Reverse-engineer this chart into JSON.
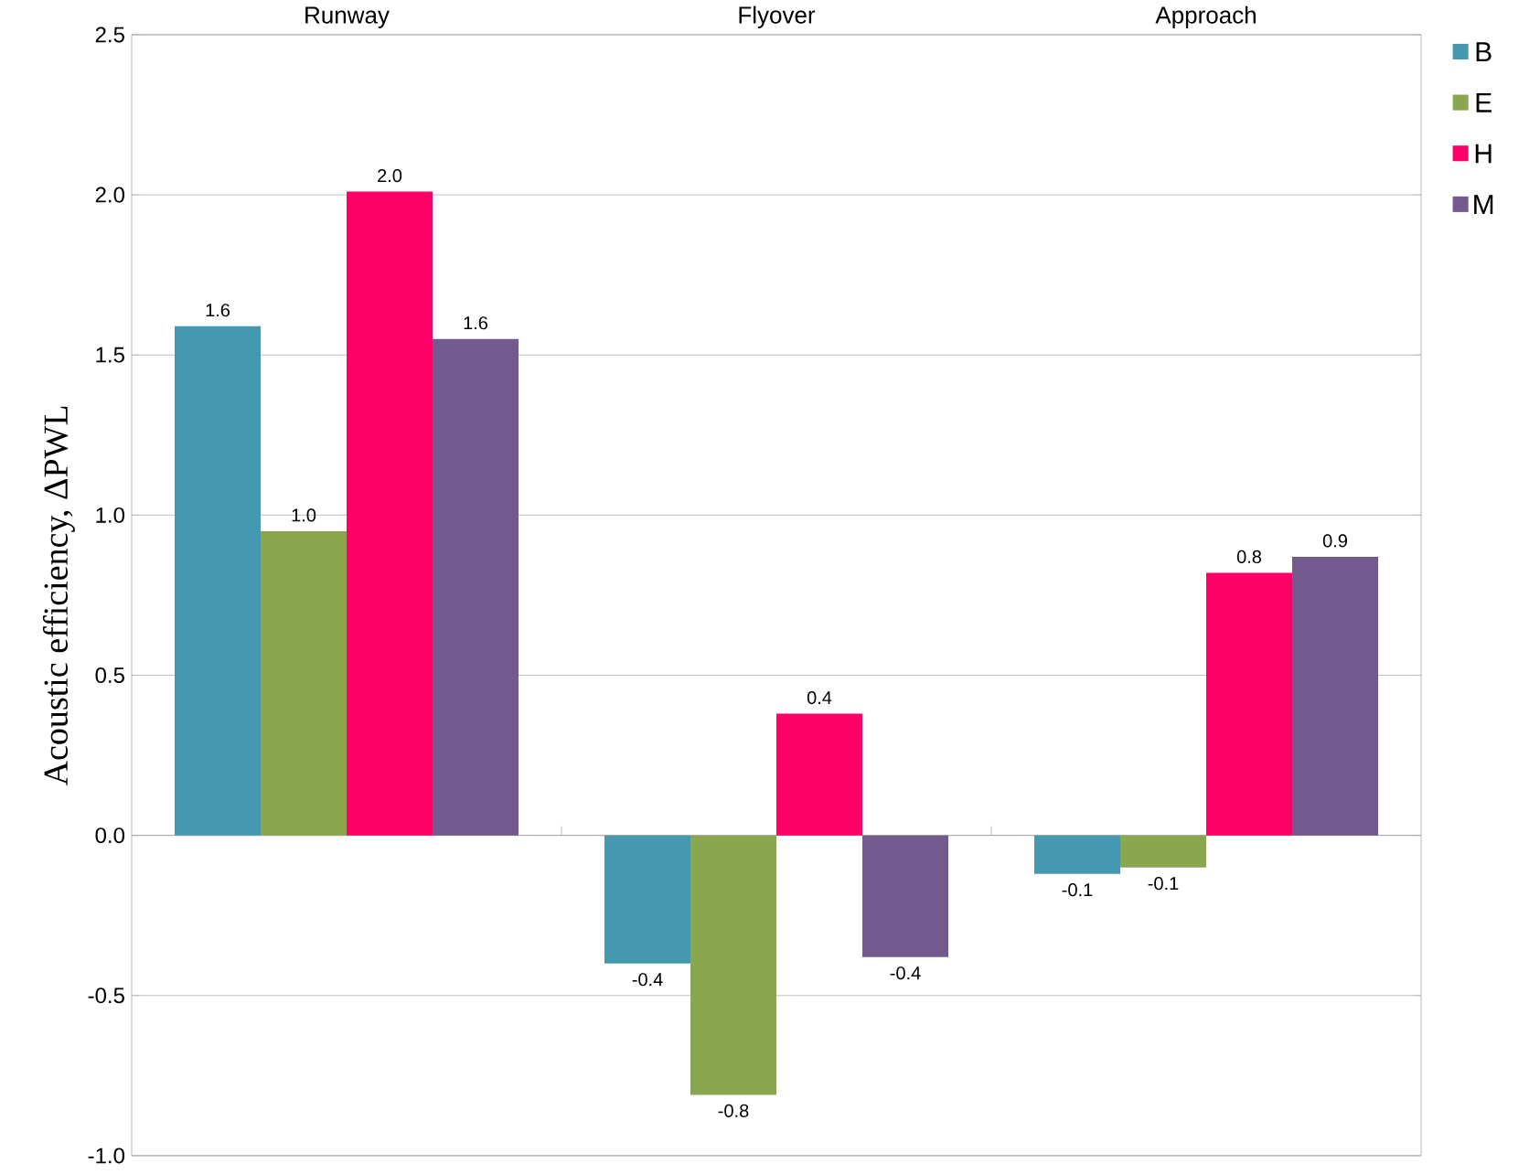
{
  "chart_data": {
    "type": "bar",
    "ylabel": "Acoustic efficiency, ΔPWL",
    "categories": [
      "Runway",
      "Flyover",
      "Approach"
    ],
    "series": [
      {
        "name": "B",
        "color": "#4498b0",
        "values": [
          1.59,
          -0.4,
          -0.12
        ],
        "value_labels": [
          "1.6",
          "-0.4",
          "-0.1"
        ]
      },
      {
        "name": "E",
        "color": "#8aa64e",
        "values": [
          0.95,
          -0.81,
          -0.1
        ],
        "value_labels": [
          "1.0",
          "-0.8",
          "-0.1"
        ]
      },
      {
        "name": "H",
        "color": "#ff0066",
        "values": [
          2.01,
          0.38,
          0.82
        ],
        "value_labels": [
          "2.0",
          "0.4",
          "0.8"
        ]
      },
      {
        "name": "M",
        "color": "#725a8e",
        "values": [
          1.55,
          -0.38,
          0.87
        ],
        "value_labels": [
          "1.6",
          "-0.4",
          "0.9"
        ]
      }
    ],
    "ylim": [
      -1.0,
      2.5
    ],
    "yticks": [
      {
        "value": -1.0,
        "label": "-1.0"
      },
      {
        "value": -0.5,
        "label": "-0.5"
      },
      {
        "value": 0.0,
        "label": "0.0"
      },
      {
        "value": 0.5,
        "label": "0.5"
      },
      {
        "value": 1.0,
        "label": "1.0"
      },
      {
        "value": 1.5,
        "label": "1.5"
      },
      {
        "value": 2.0,
        "label": "2.0"
      },
      {
        "value": 2.5,
        "label": "2.5"
      }
    ],
    "grid": "y",
    "legend": "right"
  }
}
